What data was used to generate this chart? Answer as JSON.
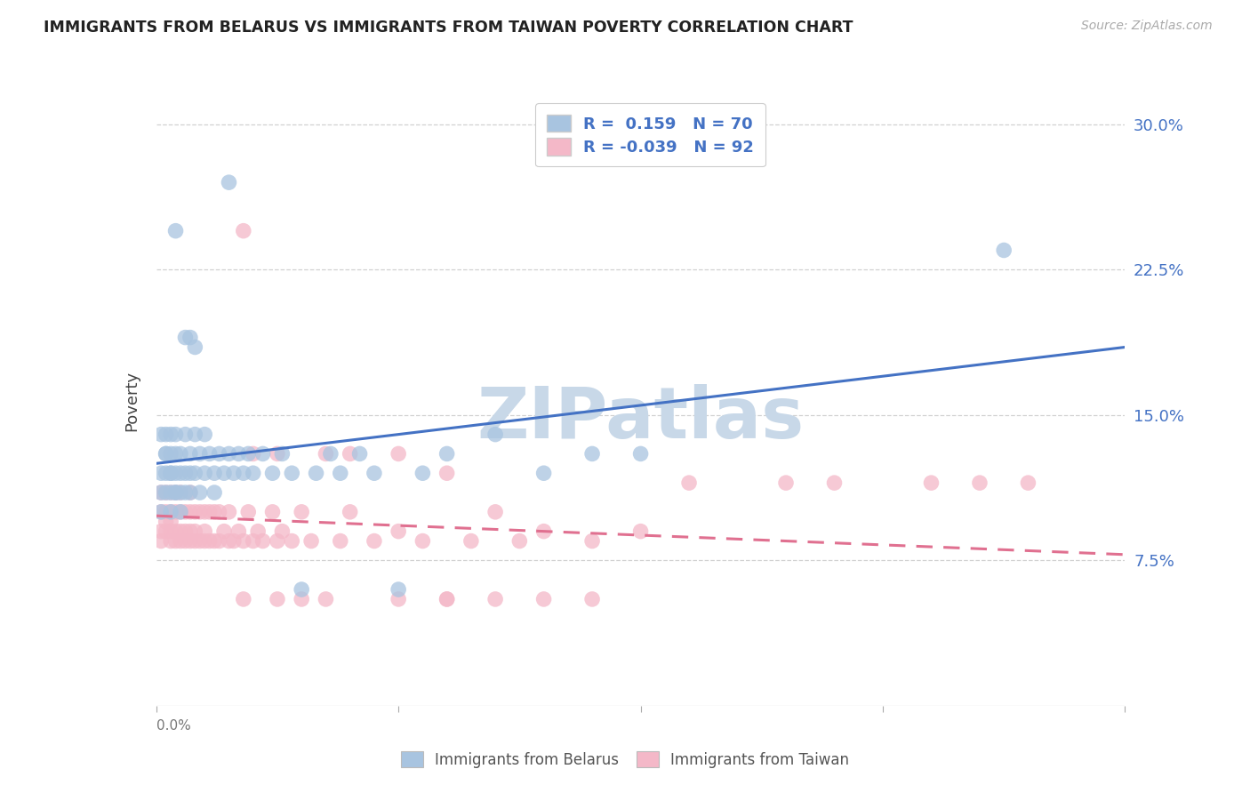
{
  "title": "IMMIGRANTS FROM BELARUS VS IMMIGRANTS FROM TAIWAN POVERTY CORRELATION CHART",
  "source": "Source: ZipAtlas.com",
  "ylabel": "Poverty",
  "ytick_vals": [
    0.075,
    0.15,
    0.225,
    0.3
  ],
  "ytick_labels": [
    "7.5%",
    "15.0%",
    "22.5%",
    "30.0%"
  ],
  "xlim": [
    0.0,
    0.2
  ],
  "ylim": [
    0.0,
    0.315
  ],
  "legend_r_belarus": "R =  0.159",
  "legend_n_belarus": "N = 70",
  "legend_r_taiwan": "R = -0.039",
  "legend_n_taiwan": "N = 92",
  "color_belarus": "#a8c4e0",
  "color_taiwan": "#f4b8c8",
  "color_line_belarus": "#4472c4",
  "color_line_taiwan": "#e07090",
  "watermark": "ZIPatlas",
  "watermark_color": "#c8d8e8",
  "bel_line_x0": 0.0,
  "bel_line_y0": 0.125,
  "bel_line_x1": 0.2,
  "bel_line_y1": 0.185,
  "tai_line_x0": 0.0,
  "tai_line_y0": 0.098,
  "tai_line_x1": 0.2,
  "tai_line_y1": 0.078,
  "scatter_bel_x": [
    0.001,
    0.001,
    0.001,
    0.001,
    0.002,
    0.002,
    0.002,
    0.002,
    0.002,
    0.003,
    0.003,
    0.003,
    0.003,
    0.003,
    0.003,
    0.004,
    0.004,
    0.004,
    0.004,
    0.004,
    0.005,
    0.005,
    0.005,
    0.005,
    0.006,
    0.006,
    0.006,
    0.007,
    0.007,
    0.007,
    0.008,
    0.008,
    0.009,
    0.009,
    0.01,
    0.01,
    0.011,
    0.012,
    0.012,
    0.013,
    0.014,
    0.015,
    0.016,
    0.017,
    0.018,
    0.019,
    0.02,
    0.022,
    0.024,
    0.026,
    0.028,
    0.03,
    0.033,
    0.036,
    0.038,
    0.042,
    0.045,
    0.05,
    0.055,
    0.06,
    0.07,
    0.08,
    0.09,
    0.1,
    0.015,
    0.004,
    0.175,
    0.006,
    0.007,
    0.008
  ],
  "scatter_bel_y": [
    0.12,
    0.14,
    0.11,
    0.1,
    0.13,
    0.12,
    0.11,
    0.14,
    0.13,
    0.12,
    0.11,
    0.13,
    0.14,
    0.1,
    0.12,
    0.11,
    0.13,
    0.12,
    0.14,
    0.11,
    0.12,
    0.13,
    0.11,
    0.1,
    0.12,
    0.14,
    0.11,
    0.13,
    0.12,
    0.11,
    0.14,
    0.12,
    0.11,
    0.13,
    0.12,
    0.14,
    0.13,
    0.12,
    0.11,
    0.13,
    0.12,
    0.13,
    0.12,
    0.13,
    0.12,
    0.13,
    0.12,
    0.13,
    0.12,
    0.13,
    0.12,
    0.06,
    0.12,
    0.13,
    0.12,
    0.13,
    0.12,
    0.06,
    0.12,
    0.13,
    0.14,
    0.12,
    0.13,
    0.13,
    0.27,
    0.245,
    0.235,
    0.19,
    0.19,
    0.185
  ],
  "scatter_tai_x": [
    0.001,
    0.001,
    0.001,
    0.001,
    0.002,
    0.002,
    0.002,
    0.002,
    0.003,
    0.003,
    0.003,
    0.003,
    0.003,
    0.004,
    0.004,
    0.004,
    0.004,
    0.005,
    0.005,
    0.005,
    0.005,
    0.006,
    0.006,
    0.006,
    0.007,
    0.007,
    0.007,
    0.007,
    0.008,
    0.008,
    0.008,
    0.009,
    0.009,
    0.01,
    0.01,
    0.01,
    0.011,
    0.011,
    0.012,
    0.012,
    0.013,
    0.013,
    0.014,
    0.015,
    0.015,
    0.016,
    0.017,
    0.018,
    0.019,
    0.02,
    0.021,
    0.022,
    0.024,
    0.025,
    0.026,
    0.028,
    0.03,
    0.032,
    0.035,
    0.038,
    0.04,
    0.045,
    0.05,
    0.055,
    0.06,
    0.065,
    0.07,
    0.075,
    0.08,
    0.09,
    0.1,
    0.018,
    0.02,
    0.025,
    0.035,
    0.04,
    0.05,
    0.06,
    0.11,
    0.13,
    0.14,
    0.16,
    0.17,
    0.18,
    0.018,
    0.025,
    0.03,
    0.05,
    0.06,
    0.07,
    0.08,
    0.09
  ],
  "scatter_tai_y": [
    0.1,
    0.09,
    0.11,
    0.085,
    0.1,
    0.095,
    0.09,
    0.11,
    0.085,
    0.1,
    0.095,
    0.09,
    0.11,
    0.085,
    0.1,
    0.09,
    0.11,
    0.085,
    0.1,
    0.09,
    0.11,
    0.085,
    0.1,
    0.09,
    0.085,
    0.1,
    0.09,
    0.11,
    0.085,
    0.1,
    0.09,
    0.085,
    0.1,
    0.085,
    0.1,
    0.09,
    0.085,
    0.1,
    0.085,
    0.1,
    0.085,
    0.1,
    0.09,
    0.085,
    0.1,
    0.085,
    0.09,
    0.085,
    0.1,
    0.085,
    0.09,
    0.085,
    0.1,
    0.085,
    0.09,
    0.085,
    0.1,
    0.085,
    0.055,
    0.085,
    0.1,
    0.085,
    0.09,
    0.085,
    0.055,
    0.085,
    0.1,
    0.085,
    0.09,
    0.085,
    0.09,
    0.245,
    0.13,
    0.13,
    0.13,
    0.13,
    0.13,
    0.12,
    0.115,
    0.115,
    0.115,
    0.115,
    0.115,
    0.115,
    0.055,
    0.055,
    0.055,
    0.055,
    0.055,
    0.055,
    0.055,
    0.055
  ]
}
